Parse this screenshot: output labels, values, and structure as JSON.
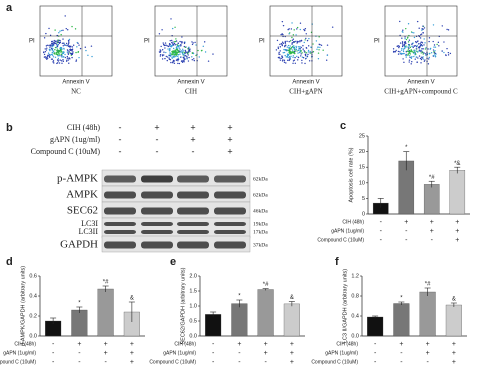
{
  "panel_labels": [
    "a",
    "b",
    "c",
    "d",
    "e",
    "f"
  ],
  "flow": {
    "axis_x": "Annexin V",
    "axis_y": "PI",
    "groups": [
      "NC",
      "CIH",
      "CIH+gAPN",
      "CIH+gAPN+compound C"
    ]
  },
  "treatments": [
    {
      "label": "CIH (48h)",
      "signs": [
        "-",
        "+",
        "+",
        "+"
      ]
    },
    {
      "label": "gAPN (1ug/ml)",
      "signs": [
        "-",
        "-",
        "+",
        "+"
      ]
    },
    {
      "label": "Compound C (10uM)",
      "signs": [
        "-",
        "-",
        "-",
        "+"
      ]
    }
  ],
  "blot": {
    "rows": [
      {
        "name": "p-AMPK",
        "size": "62kDa"
      },
      {
        "name": "AMPK",
        "size": "62kDa"
      },
      {
        "name": "SEC62",
        "size": "46kDa"
      },
      {
        "name": "LC3I",
        "size": "19kDa"
      },
      {
        "name": "LC3II",
        "size": "17kDa"
      },
      {
        "name": "GAPDH",
        "size": "37kDa"
      }
    ]
  },
  "chart_data": [
    {
      "type": "bar",
      "ylabel": "Apoptosis cell rate (%)",
      "values": [
        3.5,
        17,
        9.5,
        14
      ],
      "errors": [
        1.5,
        3,
        1,
        1
      ],
      "annotations": [
        null,
        "*",
        "*#",
        "*&"
      ],
      "colors": [
        "#111111",
        "#777777",
        "#999999",
        "#cccccc"
      ],
      "ylim": [
        0,
        25
      ],
      "yticks": [
        0,
        5,
        10,
        15,
        20,
        25
      ]
    },
    {
      "type": "bar",
      "ylabel": "p-AMPK/GAPDH (arbitrary units)",
      "values": [
        0.15,
        0.26,
        0.47,
        0.24
      ],
      "errors": [
        0.03,
        0.03,
        0.03,
        0.1
      ],
      "annotations": [
        null,
        "*",
        "*#",
        "&"
      ],
      "colors": [
        "#111111",
        "#777777",
        "#999999",
        "#cccccc"
      ],
      "ylim": [
        0,
        0.6
      ],
      "yticks": [
        {
          "value": 0,
          "label": "0.0"
        },
        0.2,
        0.4,
        0.6
      ]
    },
    {
      "type": "bar",
      "ylabel": "SEC62/GAPDH (arbitrary units)",
      "values": [
        0.72,
        1.08,
        1.55,
        1.07
      ],
      "errors": [
        0.08,
        0.12,
        0.03,
        0.08
      ],
      "annotations": [
        null,
        "*",
        "*#",
        "&"
      ],
      "colors": [
        "#111111",
        "#777777",
        "#999999",
        "#cccccc"
      ],
      "ylim": [
        0,
        2
      ],
      "yticks": [
        {
          "value": 0,
          "label": "0.0"
        },
        0.5,
        {
          "value": 1,
          "label": "1.0"
        },
        1.5,
        {
          "value": 2,
          "label": "2.0"
        }
      ]
    },
    {
      "type": "bar",
      "ylabel": "LC3 II/GAPDH (arbitrary units)",
      "values": [
        0.38,
        0.65,
        0.88,
        0.62
      ],
      "errors": [
        0.02,
        0.03,
        0.08,
        0.04
      ],
      "annotations": [
        null,
        "*",
        "*#",
        "&"
      ],
      "colors": [
        "#111111",
        "#777777",
        "#999999",
        "#cccccc"
      ],
      "ylim": [
        0,
        1.2
      ],
      "yticks": [
        {
          "value": 0,
          "label": "0.0"
        },
        0.4,
        0.8,
        1.2
      ]
    }
  ]
}
